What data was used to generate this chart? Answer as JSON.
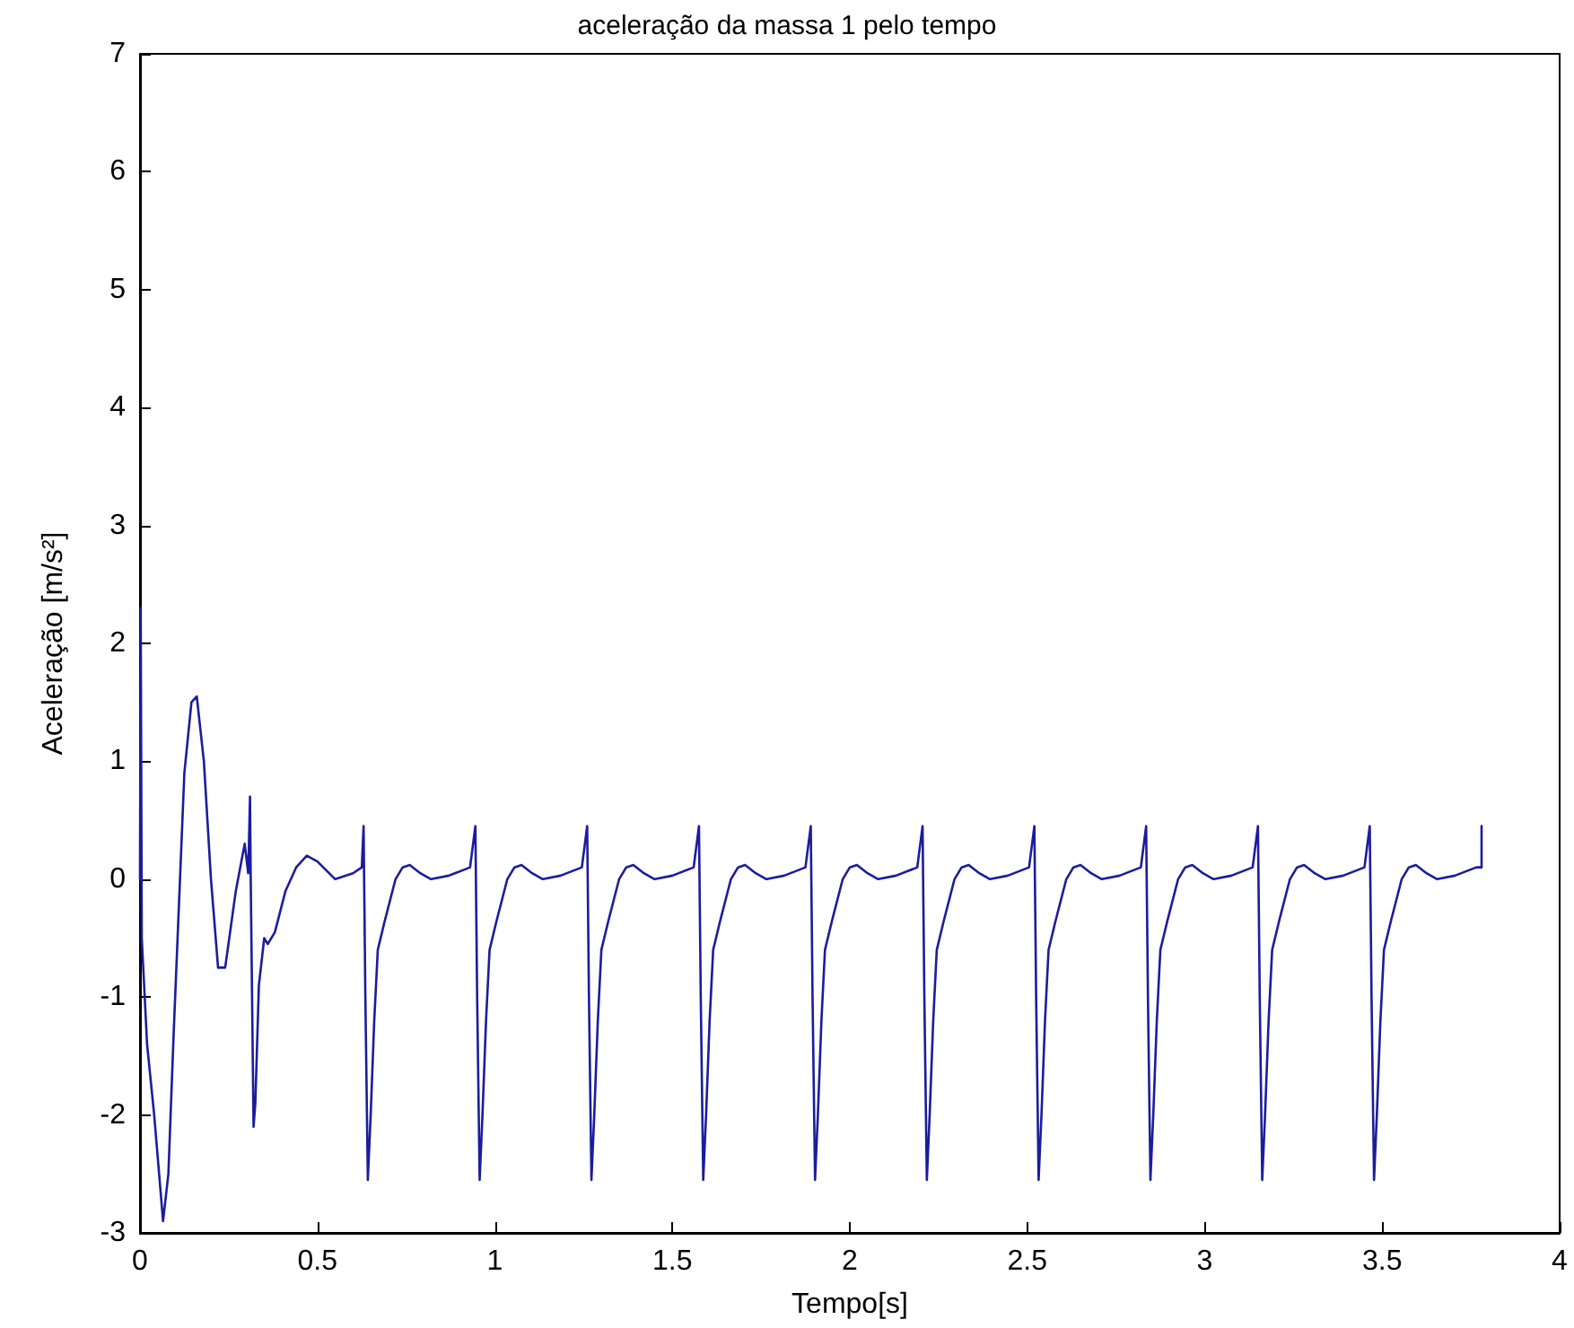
{
  "chart_data": {
    "type": "line",
    "title": "aceleração da massa 1 pelo tempo",
    "xlabel": "Tempo[s]",
    "ylabel": "Aceleração [m/s²]",
    "xlim": [
      0,
      4
    ],
    "xticks": [
      0,
      0.5,
      1,
      1.5,
      2,
      2.5,
      3,
      3.5,
      4
    ],
    "ylim": [
      -3,
      7
    ],
    "yticks": [
      -3,
      -2,
      -1,
      0,
      1,
      2,
      3,
      4,
      5,
      6,
      7
    ],
    "grid": false,
    "marker": "none",
    "line_style": "solid",
    "series": [
      {
        "color": "#1c1c9c",
        "x": [
          0,
          0.002,
          0.005,
          0.02,
          0.04,
          0.065,
          0.08,
          0.095,
          0.11,
          0.125,
          0.145,
          0.16,
          0.18,
          0.2,
          0.22,
          0.24,
          0.27,
          0.295,
          0.305,
          0.31,
          0.312,
          0.32,
          0.325,
          0.335,
          0.35,
          0.36,
          0.38,
          0.41,
          0.44,
          0.47,
          0.5,
          0.55,
          0.6,
          0.625,
          0.63,
          0.635,
          0.642,
          0.65,
          0.66,
          0.67,
          0.69,
          0.72,
          0.74,
          0.76,
          0.79,
          0.82,
          0.87,
          0.93,
          0.945,
          0.95,
          0.957,
          0.965,
          0.975,
          0.985,
          1.005,
          1.035,
          1.055,
          1.075,
          1.105,
          1.135,
          1.185,
          1.245,
          1.26,
          1.265,
          1.272,
          1.28,
          1.29,
          1.3,
          1.32,
          1.35,
          1.37,
          1.39,
          1.42,
          1.45,
          1.5,
          1.56,
          1.575,
          1.58,
          1.587,
          1.595,
          1.605,
          1.615,
          1.635,
          1.665,
          1.685,
          1.705,
          1.735,
          1.765,
          1.815,
          1.875,
          1.89,
          1.895,
          1.902,
          1.91,
          1.92,
          1.93,
          1.95,
          1.98,
          2.0,
          2.02,
          2.05,
          2.08,
          2.13,
          2.19,
          2.205,
          2.21,
          2.217,
          2.225,
          2.235,
          2.245,
          2.265,
          2.295,
          2.315,
          2.335,
          2.365,
          2.395,
          2.445,
          2.505,
          2.52,
          2.525,
          2.532,
          2.54,
          2.55,
          2.56,
          2.58,
          2.61,
          2.63,
          2.65,
          2.68,
          2.71,
          2.76,
          2.82,
          2.835,
          2.84,
          2.847,
          2.855,
          2.865,
          2.875,
          2.895,
          2.925,
          2.945,
          2.965,
          2.995,
          3.025,
          3.075,
          3.135,
          3.15,
          3.155,
          3.162,
          3.17,
          3.18,
          3.19,
          3.21,
          3.24,
          3.26,
          3.28,
          3.31,
          3.34,
          3.39,
          3.45,
          3.465,
          3.47,
          3.477,
          3.485,
          3.495,
          3.505,
          3.525,
          3.555,
          3.575,
          3.595,
          3.625,
          3.655,
          3.705,
          3.765,
          3.78,
          3.78
        ],
        "values": [
          0,
          2.3,
          -0.5,
          -1.4,
          -2.0,
          -2.9,
          -2.5,
          -1.3,
          -0.2,
          0.9,
          1.5,
          1.55,
          1.0,
          0.0,
          -0.75,
          -0.75,
          -0.1,
          0.3,
          0.05,
          0.7,
          0.0,
          -2.1,
          -1.9,
          -0.9,
          -0.5,
          -0.55,
          -0.45,
          -0.1,
          0.1,
          0.2,
          0.15,
          0.0,
          0.05,
          0.1,
          0.45,
          -1.0,
          -2.55,
          -2.0,
          -1.2,
          -0.6,
          -0.35,
          0.0,
          0.1,
          0.12,
          0.05,
          0.0,
          0.03,
          0.1,
          0.45,
          -1.0,
          -2.55,
          -2.0,
          -1.2,
          -0.6,
          -0.35,
          0.0,
          0.1,
          0.12,
          0.05,
          0.0,
          0.03,
          0.1,
          0.45,
          -1.0,
          -2.55,
          -2.0,
          -1.2,
          -0.6,
          -0.35,
          0.0,
          0.1,
          0.12,
          0.05,
          0.0,
          0.03,
          0.1,
          0.45,
          -1.0,
          -2.55,
          -2.0,
          -1.2,
          -0.6,
          -0.35,
          0.0,
          0.1,
          0.12,
          0.05,
          0.0,
          0.03,
          0.1,
          0.45,
          -1.0,
          -2.55,
          -2.0,
          -1.2,
          -0.6,
          -0.35,
          0.0,
          0.1,
          0.12,
          0.05,
          0.0,
          0.03,
          0.1,
          0.45,
          -1.0,
          -2.55,
          -2.0,
          -1.2,
          -0.6,
          -0.35,
          0.0,
          0.1,
          0.12,
          0.05,
          0.0,
          0.03,
          0.1,
          0.45,
          -1.0,
          -2.55,
          -2.0,
          -1.2,
          -0.6,
          -0.35,
          0.0,
          0.1,
          0.12,
          0.05,
          0.0,
          0.03,
          0.1,
          0.45,
          -1.0,
          -2.55,
          -2.0,
          -1.2,
          -0.6,
          -0.35,
          0.0,
          0.1,
          0.12,
          0.05,
          0.0,
          0.03,
          0.1,
          0.45,
          -1.0,
          -2.55,
          -2.0,
          -1.2,
          -0.6,
          -0.35,
          0.0,
          0.1,
          0.12,
          0.05,
          0.0,
          0.03,
          0.1,
          0.45,
          -1.0,
          -2.55,
          -2.0,
          -1.2,
          -0.6,
          -0.35,
          0.0,
          0.1,
          0.12,
          0.05,
          0.0,
          0.03,
          0.1,
          0.1,
          0.45
        ]
      }
    ]
  }
}
